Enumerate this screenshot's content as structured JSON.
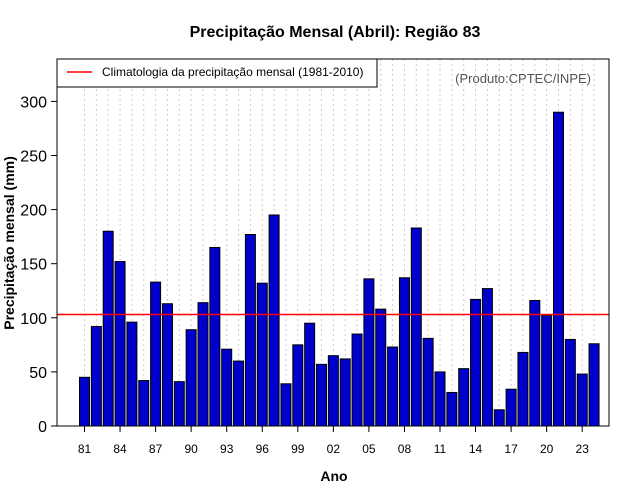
{
  "chart_data": {
    "type": "bar",
    "title": "Precipitação Mensal (Abril): Região 83",
    "xlabel": "Ano",
    "ylabel": "Precipitação mensal (mm)",
    "credit": "(Produto:CPTEC/INPE)",
    "legend": {
      "label": "Climatologia da precipitação mensal (1981-2010)",
      "position": "top-left"
    },
    "climatology": 103,
    "ylim": [
      0,
      340
    ],
    "yticks": [
      "0",
      "50",
      "100",
      "150",
      "200",
      "250",
      "300"
    ],
    "xtick_labels": [
      "81",
      "84",
      "87",
      "90",
      "93",
      "96",
      "99",
      "02",
      "05",
      "08",
      "11",
      "14",
      "17",
      "20",
      "23"
    ],
    "categories": [
      "1981",
      "1982",
      "1983",
      "1984",
      "1985",
      "1986",
      "1987",
      "1988",
      "1989",
      "1990",
      "1991",
      "1992",
      "1993",
      "1994",
      "1995",
      "1996",
      "1997",
      "1998",
      "1999",
      "2000",
      "2001",
      "2002",
      "2003",
      "2004",
      "2005",
      "2006",
      "2007",
      "2008",
      "2009",
      "2010",
      "2011",
      "2012",
      "2013",
      "2014",
      "2015",
      "2016",
      "2017",
      "2018",
      "2019",
      "2020",
      "2021",
      "2022",
      "2023",
      "2024"
    ],
    "values": [
      45,
      92,
      180,
      152,
      96,
      42,
      133,
      113,
      41,
      89,
      114,
      165,
      71,
      60,
      177,
      132,
      195,
      39,
      75,
      95,
      57,
      65,
      62,
      85,
      136,
      108,
      73,
      137,
      183,
      81,
      50,
      31,
      53,
      117,
      127,
      15,
      34,
      68,
      116,
      102,
      290,
      80,
      48,
      76
    ],
    "colors": {
      "bar": "#0000cc",
      "climatology": "#ff0000",
      "grid": "#cccccc"
    }
  }
}
